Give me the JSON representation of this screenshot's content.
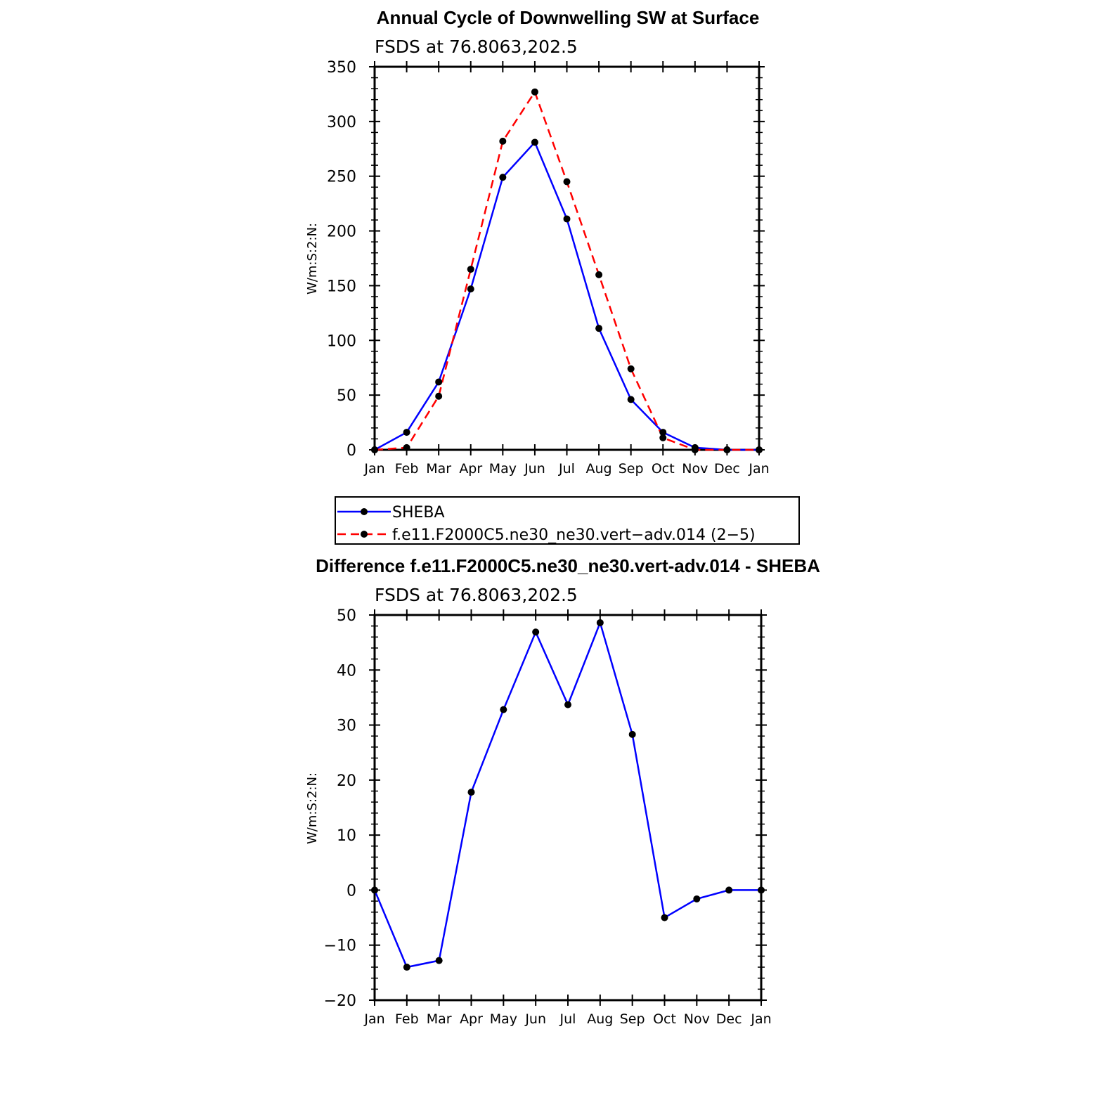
{
  "chart_data": [
    {
      "type": "line",
      "title": "Annual Cycle of Downwelling SW at Surface",
      "subtitle": "FSDS at 76.8063,202.5",
      "ylabel": "W/m:S:2:N:",
      "xlabel": "",
      "categories": [
        "Jan",
        "Feb",
        "Mar",
        "Apr",
        "May",
        "Jun",
        "Jul",
        "Aug",
        "Sep",
        "Oct",
        "Nov",
        "Dec",
        "Jan"
      ],
      "ylim": [
        0,
        350
      ],
      "yticks": [
        0,
        50,
        100,
        150,
        200,
        250,
        300,
        350
      ],
      "grid": false,
      "legend_position": "below",
      "series": [
        {
          "name": "SHEBA",
          "color": "#0000ff",
          "dash": "solid",
          "values": [
            0,
            16,
            62,
            147,
            249,
            281,
            211,
            111,
            46,
            16,
            2,
            0,
            0
          ]
        },
        {
          "name": "f.e11.F2000C5.ne30_ne30.vert−adv.014 (2−5)",
          "color": "#ff0000",
          "dash": "dashed",
          "values": [
            0,
            2,
            49,
            165,
            282,
            327,
            245,
            160,
            74,
            11,
            0,
            0,
            0
          ]
        }
      ]
    },
    {
      "type": "line",
      "title": "Difference f.e11.F2000C5.ne30_ne30.vert-adv.014 - SHEBA",
      "subtitle": "FSDS at 76.8063,202.5",
      "ylabel": "W/m:S:2:N:",
      "xlabel": "",
      "categories": [
        "Jan",
        "Feb",
        "Mar",
        "Apr",
        "May",
        "Jun",
        "Jul",
        "Aug",
        "Sep",
        "Oct",
        "Nov",
        "Dec",
        "Jan"
      ],
      "ylim": [
        -20,
        50
      ],
      "yticks": [
        -20,
        -10,
        0,
        10,
        20,
        30,
        40,
        50
      ],
      "ytick_labels": [
        "−20",
        "−10",
        "0",
        "10",
        "20",
        "30",
        "40",
        "50"
      ],
      "grid": false,
      "series": [
        {
          "color": "#0000ff",
          "dash": "solid",
          "values": [
            0,
            -14,
            -12.8,
            17.8,
            32.8,
            46.9,
            33.7,
            48.6,
            28.3,
            -5,
            -1.6,
            0,
            0
          ]
        }
      ]
    }
  ]
}
